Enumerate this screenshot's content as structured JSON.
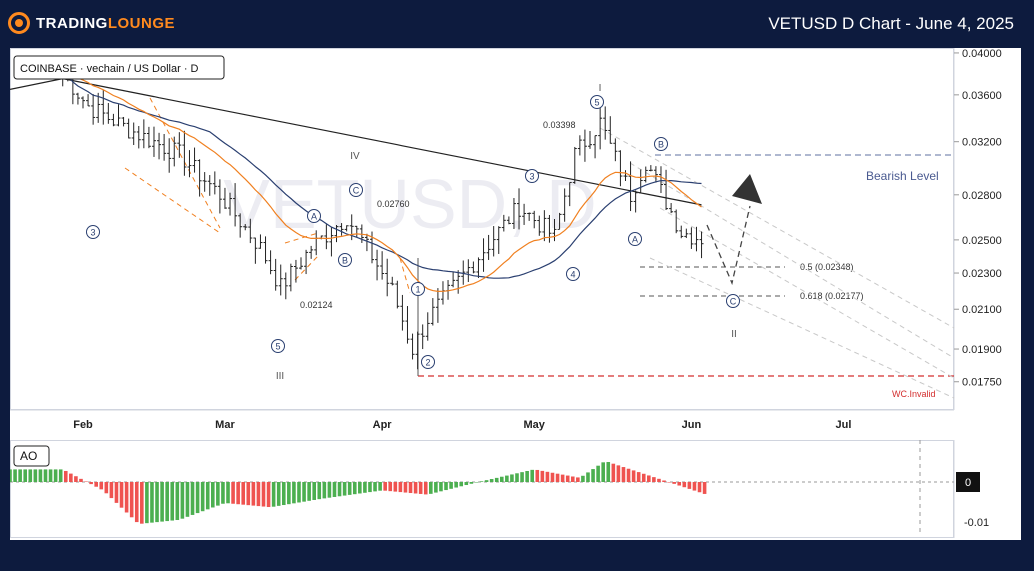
{
  "brand": {
    "name_main": "TradingLounge",
    "name_a": "TRADING",
    "name_b": "LOUNGE",
    "logo_icon": "tradinglounge-logo-icon"
  },
  "header": {
    "title": "VETUSD D Chart - June 4, 2025"
  },
  "legend": {
    "symbol": "COINBASE · vechain / US Dollar · D"
  },
  "watermark": "VETUSD, D",
  "annotations": {
    "bearish_level": "Bearish Level",
    "wc_invalid": "WC.Invalid",
    "fib_05": "0.5 (0.02348)",
    "fib_0618": "0.618 (0.02177)",
    "price_high": "0.03398",
    "price_mid": "0.02760",
    "price_low": "0.02124"
  },
  "wave_labels": [
    "3",
    "5",
    "A",
    "B",
    "C",
    "1",
    "2",
    "3",
    "4",
    "5",
    "B",
    "A",
    "C"
  ],
  "roman_labels": [
    "III",
    "IV",
    "I",
    "II"
  ],
  "ao_panel": {
    "label": "AO",
    "ticks": [
      "0",
      "-0.01"
    ]
  },
  "colors": {
    "accent": "#ff8a1e",
    "background": "#0d1b3e",
    "ao_up": "#4caf50",
    "ao_down": "#ef5350",
    "bearish_line": "#7f8db5",
    "invalid_line": "#d32f2f"
  },
  "chart_data": {
    "type": "line",
    "title": "VETUSD D Chart - June 4, 2025",
    "x_ticks": [
      "Feb",
      "Mar",
      "Apr",
      "May",
      "Jun",
      "Jul"
    ],
    "y_ticks": [
      "0.04000",
      "0.03600",
      "0.03200",
      "0.02800",
      "0.02500",
      "0.02300",
      "0.02100",
      "0.01900",
      "0.01750"
    ],
    "ylim": [
      0.0163,
      0.0405
    ],
    "scale": "log",
    "levels": {
      "bearish_level": 0.03145,
      "fib_05": 0.02348,
      "fib_0618": 0.02177,
      "wc_invalid": 0.01765
    },
    "price_close": [
      {
        "date": "2025-01-28",
        "value": 0.038
      },
      {
        "date": "2025-02-02",
        "value": 0.035
      },
      {
        "date": "2025-02-10",
        "value": 0.033
      },
      {
        "date": "2025-02-20",
        "value": 0.031
      },
      {
        "date": "2025-02-28",
        "value": 0.028
      },
      {
        "date": "2025-03-08",
        "value": 0.0245
      },
      {
        "date": "2025-03-12",
        "value": 0.0222
      },
      {
        "date": "2025-03-18",
        "value": 0.0245
      },
      {
        "date": "2025-03-25",
        "value": 0.0265
      },
      {
        "date": "2025-03-30",
        "value": 0.024
      },
      {
        "date": "2025-04-03",
        "value": 0.022
      },
      {
        "date": "2025-04-07",
        "value": 0.019
      },
      {
        "date": "2025-04-10",
        "value": 0.0205
      },
      {
        "date": "2025-04-20",
        "value": 0.024
      },
      {
        "date": "2025-04-28",
        "value": 0.0272
      },
      {
        "date": "2025-05-05",
        "value": 0.0252
      },
      {
        "date": "2025-05-09",
        "value": 0.031
      },
      {
        "date": "2025-05-14",
        "value": 0.0336
      },
      {
        "date": "2025-05-20",
        "value": 0.028
      },
      {
        "date": "2025-05-23",
        "value": 0.0305
      },
      {
        "date": "2025-05-30",
        "value": 0.0255
      },
      {
        "date": "2025-06-04",
        "value": 0.025
      }
    ],
    "ao": [
      {
        "date": "2025-01-28",
        "value": 0.003
      },
      {
        "date": "2025-02-05",
        "value": -0.002
      },
      {
        "date": "2025-02-12",
        "value": -0.01
      },
      {
        "date": "2025-02-20",
        "value": -0.009
      },
      {
        "date": "2025-03-01",
        "value": -0.005
      },
      {
        "date": "2025-03-10",
        "value": -0.006
      },
      {
        "date": "2025-03-20",
        "value": -0.004
      },
      {
        "date": "2025-04-01",
        "value": -0.002
      },
      {
        "date": "2025-04-10",
        "value": -0.003
      },
      {
        "date": "2025-04-20",
        "value": 0.0
      },
      {
        "date": "2025-05-01",
        "value": 0.003
      },
      {
        "date": "2025-05-10",
        "value": 0.001
      },
      {
        "date": "2025-05-15",
        "value": 0.005
      },
      {
        "date": "2025-05-25",
        "value": 0.001
      },
      {
        "date": "2025-06-04",
        "value": -0.003
      }
    ]
  }
}
